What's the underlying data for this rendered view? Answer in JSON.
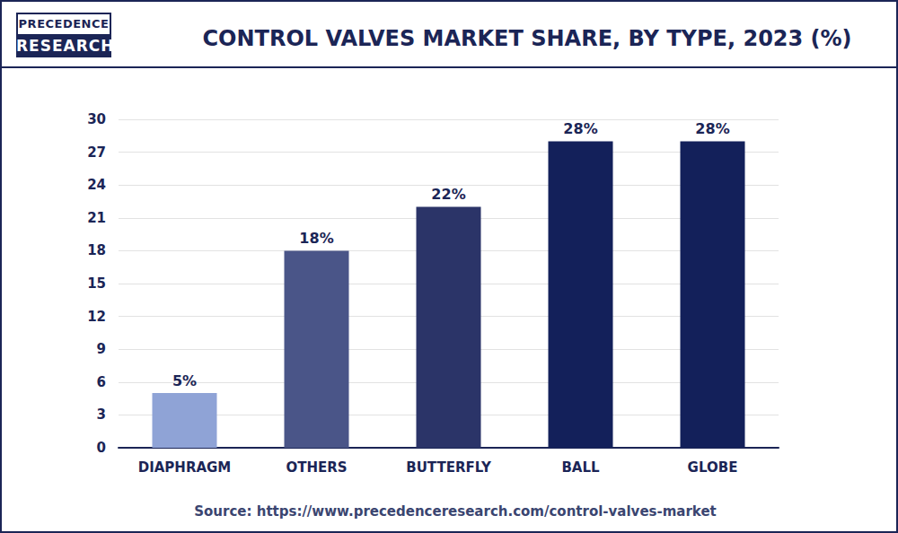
{
  "chart_data": {
    "type": "bar",
    "title": "CONTROL VALVES MARKET SHARE, BY TYPE, 2023 (%)",
    "logo": [
      "PRECEDENCE",
      "RESEARCH"
    ],
    "source": "Source: https://www.precedenceresearch.com/control-valves-market",
    "categories": [
      "DIAPHRAGM",
      "OTHERS",
      "BUTTERFLY",
      "BALL",
      "GLOBE"
    ],
    "values": [
      5,
      18,
      22,
      28,
      28
    ],
    "value_labels": [
      "5%",
      "18%",
      "22%",
      "28%",
      "28%"
    ],
    "colors": [
      "#8fa3d6",
      "#4a5588",
      "#2b3468",
      "#13205a",
      "#13205a"
    ],
    "ylim": [
      0,
      30
    ],
    "yticks": [
      0,
      3,
      6,
      9,
      12,
      15,
      18,
      21,
      24,
      27,
      30
    ],
    "grid": true,
    "data_labels": true
  }
}
